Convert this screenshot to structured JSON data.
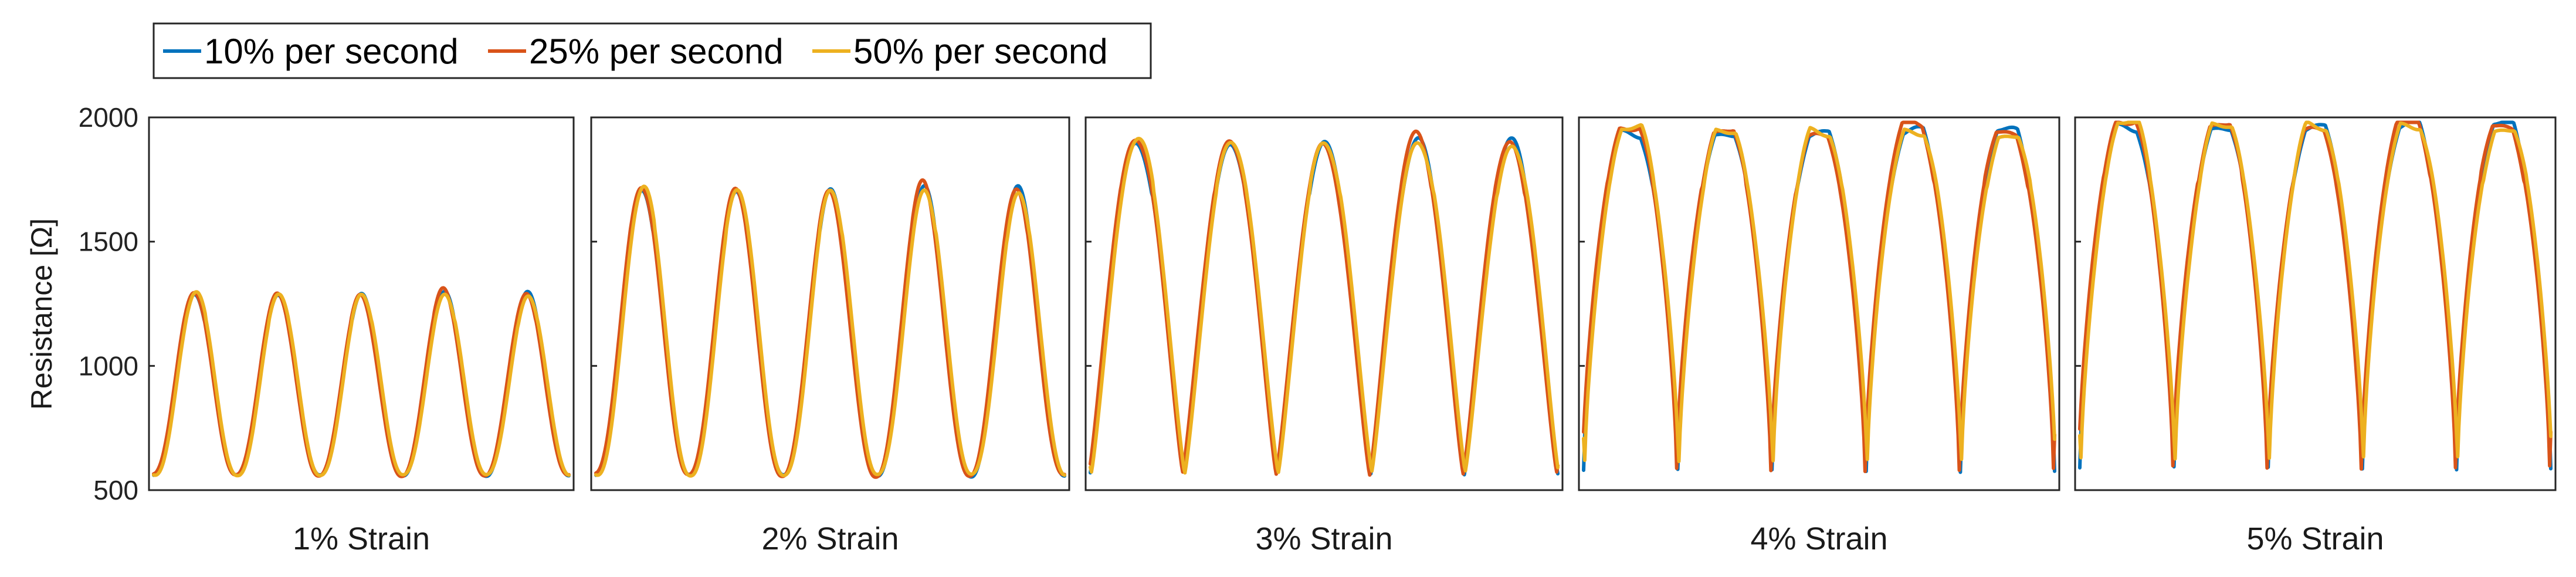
{
  "chart_data": {
    "type": "line",
    "title": "",
    "xlabel": "",
    "ylabel": "Resistance [Ω]",
    "ylim": [
      500,
      2000
    ],
    "yticks": [
      "500",
      "1000",
      "1500",
      "2000"
    ],
    "grid": false,
    "legend_position": "top-left",
    "series": [
      {
        "name": "10% per second",
        "color": "#0072BD"
      },
      {
        "name": "25% per second",
        "color": "#D95319"
      },
      {
        "name": "50% per second",
        "color": "#EDB120"
      }
    ],
    "panels": [
      {
        "label": "1% Strain",
        "cycles": 5,
        "min": 560,
        "max": 1290,
        "shape": "peaked"
      },
      {
        "label": "2% Strain",
        "cycles": 5,
        "min": 560,
        "max": 1710,
        "shape": "peaked"
      },
      {
        "label": "3% Strain",
        "cycles": 5,
        "min": 570,
        "max": 1900,
        "shape": "rounded"
      },
      {
        "label": "4% Strain",
        "cycles": 5,
        "min": 580,
        "max": 1940,
        "shape": "flat"
      },
      {
        "label": "5% Strain",
        "cycles": 5,
        "min": 590,
        "max": 1965,
        "shape": "flat"
      }
    ]
  }
}
